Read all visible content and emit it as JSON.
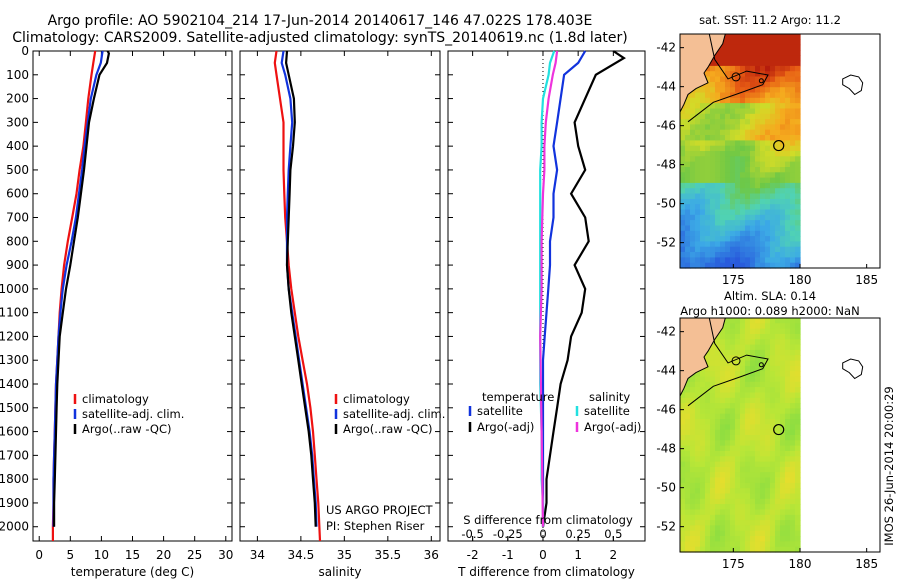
{
  "header": {
    "line1": "Argo profile: AO 5902104_214 17-Jun-2014 20140617_146 47.022S 178.403E",
    "line2": "Climatology: CARS2009. Satellite-adjusted climatology: synTS_20140619.nc (1.8d later)"
  },
  "colors": {
    "climatology": "#ee1111",
    "satellite": "#1133dd",
    "argo": "#000000",
    "sal_satellite": "#22e0e0",
    "sal_argo": "#ee33dd"
  },
  "chart_data": [
    {
      "type": "line",
      "panel": "temperature",
      "xlabel": "temperature (deg C)",
      "xlim": [
        -1,
        31
      ],
      "xticks": [
        0,
        5,
        10,
        15,
        20,
        25,
        30
      ],
      "ylim": [
        2060,
        0
      ],
      "yticks": [
        0,
        100,
        200,
        300,
        400,
        500,
        600,
        700,
        800,
        900,
        1000,
        1100,
        1200,
        1300,
        1400,
        1500,
        1600,
        1700,
        1800,
        1900,
        2000
      ],
      "legend": {
        "position": "lower-middle",
        "labels": [
          "climatology",
          "satellite-adj. clim.",
          "Argo(..raw -QC)"
        ]
      },
      "series": [
        {
          "name": "climatology",
          "color_key": "climatology",
          "x": [
            9.0,
            8.7,
            8.4,
            7.9,
            7.5,
            7.1,
            6.5,
            6.0,
            5.3,
            4.6,
            4.0,
            3.6,
            3.3,
            3.1,
            2.9,
            2.7,
            2.6,
            2.5,
            2.4,
            2.3,
            2.3,
            2.25,
            2.2,
            2.2,
            2.2,
            2.2
          ],
          "y": [
            0,
            50,
            100,
            200,
            300,
            400,
            500,
            600,
            700,
            800,
            900,
            1000,
            1100,
            1200,
            1300,
            1400,
            1500,
            1600,
            1700,
            1800,
            1900,
            1950,
            2000,
            2030,
            2050,
            2060
          ]
        },
        {
          "name": "satellite",
          "color_key": "satellite",
          "x": [
            10.2,
            9.9,
            9.2,
            8.3,
            7.8,
            7.3,
            6.9,
            6.4,
            5.9,
            5.2,
            4.4,
            3.8,
            3.4,
            3.1,
            2.9,
            2.7,
            2.6,
            2.5,
            2.4,
            2.3,
            2.3,
            2.3
          ],
          "y": [
            0,
            50,
            100,
            200,
            300,
            400,
            500,
            600,
            700,
            800,
            900,
            1000,
            1100,
            1200,
            1300,
            1400,
            1500,
            1600,
            1700,
            1800,
            1900,
            2000
          ]
        },
        {
          "name": "argo",
          "color_key": "argo",
          "x": [
            11.0,
            11.2,
            10.9,
            9.7,
            8.8,
            8.0,
            7.6,
            7.2,
            6.7,
            6.2,
            5.6,
            5.0,
            4.3,
            3.8,
            3.3,
            3.1,
            2.9,
            2.8,
            2.7,
            2.6,
            2.5,
            2.4,
            2.4
          ],
          "y": [
            0,
            10,
            50,
            100,
            200,
            300,
            400,
            500,
            600,
            700,
            800,
            900,
            1000,
            1100,
            1200,
            1300,
            1400,
            1500,
            1600,
            1700,
            1800,
            1900,
            2000
          ]
        }
      ]
    },
    {
      "type": "line",
      "panel": "salinity",
      "xlabel": "salinity",
      "xlim": [
        33.8,
        36.1
      ],
      "xticks": [
        34,
        34.5,
        35,
        35.5,
        36
      ],
      "ylim": [
        2060,
        0
      ],
      "legend": {
        "position": "lower-right",
        "labels": [
          "climatology",
          "satellite-adj. clim.",
          "Argo(..raw -QC)"
        ]
      },
      "annotations": [
        "US ARGO PROJECT",
        "PI: Stephen Riser"
      ],
      "series": [
        {
          "name": "climatology",
          "color_key": "climatology",
          "x": [
            34.22,
            34.2,
            34.22,
            34.26,
            34.3,
            34.3,
            34.3,
            34.31,
            34.32,
            34.34,
            34.36,
            34.39,
            34.43,
            34.47,
            34.52,
            34.57,
            34.61,
            34.64,
            34.66,
            34.68,
            34.7,
            34.72
          ],
          "y": [
            0,
            50,
            100,
            200,
            300,
            400,
            500,
            600,
            700,
            800,
            900,
            1000,
            1100,
            1200,
            1300,
            1400,
            1500,
            1600,
            1700,
            1800,
            1900,
            2060
          ]
        },
        {
          "name": "satellite",
          "color_key": "satellite",
          "x": [
            34.3,
            34.28,
            34.32,
            34.38,
            34.4,
            34.38,
            34.36,
            34.35,
            34.34,
            34.34,
            34.34,
            34.36,
            34.4,
            34.44,
            34.48,
            34.52,
            34.56,
            34.6,
            34.63,
            34.65,
            34.67,
            34.68
          ],
          "y": [
            0,
            50,
            100,
            200,
            300,
            400,
            500,
            600,
            700,
            800,
            900,
            1000,
            1100,
            1200,
            1300,
            1400,
            1500,
            1600,
            1700,
            1800,
            1900,
            2000
          ]
        },
        {
          "name": "argo",
          "color_key": "argo",
          "x": [
            34.34,
            34.33,
            34.36,
            34.42,
            34.43,
            34.41,
            34.38,
            34.37,
            34.36,
            34.35,
            34.34,
            34.36,
            34.39,
            34.43,
            34.47,
            34.51,
            34.55,
            34.59,
            34.62,
            34.64,
            34.66,
            34.67
          ],
          "y": [
            0,
            50,
            100,
            200,
            300,
            400,
            500,
            600,
            700,
            800,
            900,
            1000,
            1100,
            1200,
            1300,
            1400,
            1500,
            1600,
            1700,
            1800,
            1900,
            2000
          ]
        }
      ]
    },
    {
      "type": "line",
      "panel": "difference",
      "xlabel": "T difference from climatology",
      "top_axis_label": "S difference from climatology",
      "xlim": [
        -2.7,
        2.9
      ],
      "xticks": [
        -2,
        -1,
        0,
        1,
        2
      ],
      "top_ticks": [
        -0.5,
        -0.25,
        0,
        0.25,
        0.5
      ],
      "ylim": [
        2060,
        0
      ],
      "legend": {
        "position": "lower-middle",
        "labels": [
          "temperature",
          "satellite",
          "Argo(-adj)",
          "salinity",
          "satellite",
          "Argo(-adj)"
        ]
      },
      "series": [
        {
          "name": "satellite",
          "color_key": "satellite",
          "x": [
            1.2,
            1.0,
            0.6,
            0.5,
            0.4,
            0.3,
            0.4,
            0.3,
            0.3,
            0.2,
            0.2,
            0.15,
            0.1,
            0.05,
            0.0,
            0.0,
            0.0,
            0.0,
            0.0,
            0.0,
            0.0
          ],
          "y": [
            0,
            50,
            100,
            200,
            300,
            400,
            500,
            600,
            700,
            800,
            900,
            1000,
            1100,
            1200,
            1300,
            1400,
            1500,
            1600,
            1700,
            1800,
            2000
          ]
        },
        {
          "name": "argo",
          "color_key": "argo",
          "x": [
            2.0,
            2.3,
            1.5,
            1.2,
            0.9,
            1.0,
            1.2,
            0.8,
            1.2,
            1.3,
            0.9,
            1.2,
            1.1,
            0.8,
            0.7,
            0.5,
            0.4,
            0.3,
            0.2,
            0.1,
            0.1,
            0.0
          ],
          "y": [
            0,
            30,
            100,
            200,
            300,
            400,
            500,
            600,
            700,
            800,
            900,
            1000,
            1100,
            1200,
            1300,
            1400,
            1500,
            1600,
            1700,
            1800,
            1900,
            2000
          ]
        },
        {
          "name": "satellite",
          "color_key": "sal_satellite",
          "x": [
            0.08,
            0.05,
            0.04,
            0.0,
            -0.01,
            -0.01,
            -0.02,
            -0.02,
            -0.02,
            -0.02,
            -0.02,
            -0.02,
            -0.01,
            -0.01,
            0.0,
            0.0
          ],
          "y": [
            0,
            50,
            100,
            200,
            300,
            400,
            500,
            600,
            800,
            1000,
            1200,
            1400,
            1600,
            1800,
            1900,
            2000
          ]
        },
        {
          "name": "Argo(-adj)",
          "color_key": "sal_argo",
          "x": [
            0.1,
            0.09,
            0.07,
            0.04,
            0.02,
            0.01,
            0.01,
            0.0,
            -0.01,
            -0.01,
            -0.02,
            0.0
          ],
          "y": [
            0,
            50,
            100,
            200,
            300,
            400,
            500,
            600,
            800,
            1000,
            1200,
            2000
          ]
        }
      ]
    },
    {
      "type": "heatmap",
      "panel": "sst-map",
      "title": "sat. SST: 11.2 Argo: 11.2",
      "xlim": [
        171,
        186
      ],
      "ylim": [
        -53.3,
        -41.3
      ],
      "xticks": [
        175,
        180,
        185
      ],
      "yticks": [
        -42,
        -44,
        -46,
        -48,
        -50,
        -52
      ],
      "argo_position": {
        "lon": 178.403,
        "lat": -47.022
      }
    },
    {
      "type": "heatmap",
      "panel": "sla-map",
      "title": "Altim. SLA: 0.14",
      "subtitle": "Argo h1000: 0.089 h2000: NaN",
      "xlim": [
        171,
        186
      ],
      "ylim": [
        -53.3,
        -41.3
      ],
      "xticks": [
        175,
        180,
        185
      ],
      "yticks": [
        -42,
        -44,
        -46,
        -48,
        -50,
        -52
      ],
      "argo_position": {
        "lon": 178.403,
        "lat": -47.022
      }
    }
  ],
  "footer": {
    "stamp": "IMOS 26-Jun-2014 20:00:29"
  }
}
